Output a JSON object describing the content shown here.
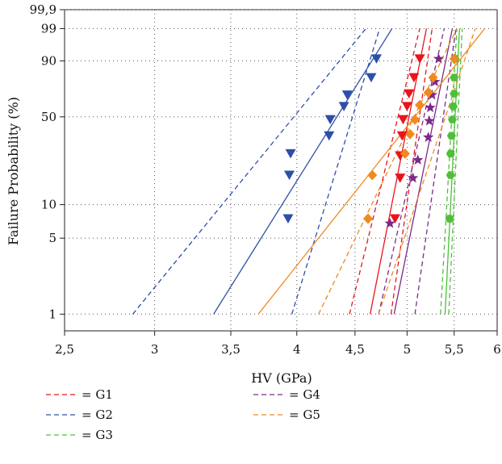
{
  "chart_data": {
    "type": "scatter",
    "xlabel": "HV (GPa)",
    "ylabel": "Failure Probability (%)",
    "x_scale": "log",
    "y_scale": "weibull",
    "xlim": [
      2.5,
      6
    ],
    "ylim_percent": [
      0.7,
      99.9
    ],
    "x_ticks": [
      {
        "value": 2.5,
        "label": "2,5"
      },
      {
        "value": 3,
        "label": "3"
      },
      {
        "value": 3.5,
        "label": "3,5"
      },
      {
        "value": 4,
        "label": "4"
      },
      {
        "value": 4.5,
        "label": "4,5"
      },
      {
        "value": 5,
        "label": "5"
      },
      {
        "value": 5.5,
        "label": "5,5"
      },
      {
        "value": 6,
        "label": "6"
      }
    ],
    "y_ticks": [
      {
        "value": 1,
        "label": "1"
      },
      {
        "value": 5,
        "label": "5"
      },
      {
        "value": 10,
        "label": "10"
      },
      {
        "value": 50,
        "label": "50"
      },
      {
        "value": 90,
        "label": "90"
      },
      {
        "value": 99,
        "label": "99"
      },
      {
        "value": 99.9,
        "label": "99,9"
      }
    ],
    "grid": "dotted",
    "legend_position": "bottom",
    "series": [
      {
        "name": "G1",
        "legend_label": "= G1",
        "color": "#e8141b",
        "marker": "triangle-down",
        "points": [
          [
            4.88,
            7.5
          ],
          [
            4.93,
            17
          ],
          [
            4.93,
            26
          ],
          [
            4.95,
            37
          ],
          [
            4.96,
            48
          ],
          [
            5.0,
            58
          ],
          [
            5.02,
            68
          ],
          [
            5.07,
            80
          ],
          [
            5.13,
            91
          ]
        ],
        "fit": [
          [
            4.64,
            1
          ],
          [
            5.2,
            99
          ]
        ],
        "bounds": [
          [
            [
              4.45,
              1
            ],
            [
              5.13,
              99
            ]
          ],
          [
            [
              4.84,
              1
            ],
            [
              5.26,
              99
            ]
          ]
        ]
      },
      {
        "name": "G2",
        "legend_label": "= G2",
        "color": "#2e4fa8",
        "marker": "triangle-down",
        "points": [
          [
            3.93,
            7.5
          ],
          [
            3.94,
            18
          ],
          [
            3.95,
            27
          ],
          [
            4.27,
            37
          ],
          [
            4.28,
            48
          ],
          [
            4.4,
            58
          ],
          [
            4.43,
            67
          ],
          [
            4.65,
            80
          ],
          [
            4.7,
            91
          ]
        ],
        "fit": [
          [
            3.38,
            1
          ],
          [
            4.85,
            99
          ]
        ],
        "bounds": [
          [
            [
              2.87,
              1
            ],
            [
              4.6,
              99
            ]
          ],
          [
            [
              3.96,
              1
            ],
            [
              4.73,
              99
            ]
          ]
        ]
      },
      {
        "name": "G3",
        "legend_label": "= G3",
        "color": "#4fbf3a",
        "marker": "hexagon",
        "points": [
          [
            5.45,
            7.5
          ],
          [
            5.46,
            18
          ],
          [
            5.46,
            27
          ],
          [
            5.47,
            37
          ],
          [
            5.48,
            48
          ],
          [
            5.49,
            58
          ],
          [
            5.5,
            68
          ],
          [
            5.5,
            80
          ],
          [
            5.51,
            91
          ]
        ],
        "fit": [
          [
            5.4,
            1
          ],
          [
            5.56,
            99
          ]
        ],
        "bounds": [
          [
            [
              5.35,
              1
            ],
            [
              5.53,
              99
            ]
          ],
          [
            [
              5.44,
              1
            ],
            [
              5.59,
              99
            ]
          ]
        ]
      },
      {
        "name": "G4",
        "legend_label": "= G4",
        "color": "#7b2a8a",
        "marker": "star",
        "points": [
          [
            4.83,
            6.8
          ],
          [
            5.06,
            17
          ],
          [
            5.11,
            24
          ],
          [
            5.22,
            36
          ],
          [
            5.23,
            47
          ],
          [
            5.24,
            57
          ],
          [
            5.26,
            67
          ],
          [
            5.29,
            77
          ],
          [
            5.33,
            91
          ]
        ],
        "fit": [
          [
            4.87,
            1
          ],
          [
            5.48,
            99
          ]
        ],
        "bounds": [
          [
            [
              4.72,
              1
            ],
            [
              5.39,
              99
            ]
          ],
          [
            [
              5.08,
              1
            ],
            [
              5.52,
              99
            ]
          ]
        ]
      },
      {
        "name": "G5",
        "legend_label": "= G5",
        "color": "#f08a1e",
        "marker": "diamond",
        "points": [
          [
            4.62,
            7.5
          ],
          [
            4.66,
            18
          ],
          [
            4.98,
            27
          ],
          [
            5.03,
            38
          ],
          [
            5.08,
            48
          ],
          [
            5.13,
            59
          ],
          [
            5.22,
            69
          ],
          [
            5.27,
            80
          ],
          [
            5.5,
            91
          ]
        ],
        "fit": [
          [
            3.7,
            1
          ],
          [
            5.85,
            99
          ]
        ],
        "bounds": [
          [
            [
              4.18,
              1
            ],
            [
              5.53,
              99
            ]
          ],
          [
            [
              4.72,
              1
            ],
            [
              5.74,
              99
            ]
          ]
        ]
      }
    ]
  }
}
